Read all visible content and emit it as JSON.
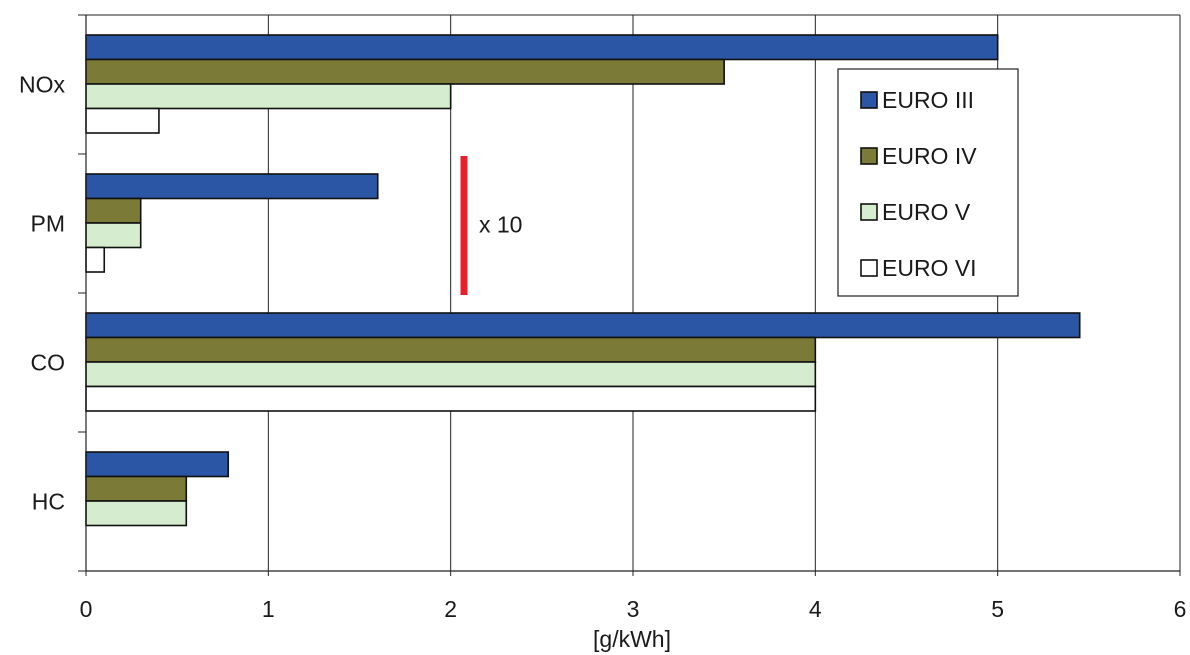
{
  "chart_data": {
    "type": "bar",
    "orientation": "horizontal",
    "categories": [
      "NOx",
      "PM",
      "CO",
      "HC"
    ],
    "series": [
      {
        "name": "EURO III",
        "color": "#2b56a5",
        "values": [
          5.0,
          1.6,
          5.45,
          0.78
        ]
      },
      {
        "name": "EURO IV",
        "color": "#7b7a36",
        "values": [
          3.5,
          0.3,
          4.0,
          0.55
        ]
      },
      {
        "name": "EURO V",
        "color": "#d5ecce",
        "values": [
          2.0,
          0.3,
          4.0,
          0.55
        ]
      },
      {
        "name": "EURO VI",
        "color": "#ffffff",
        "values": [
          0.4,
          0.1,
          4.0,
          null
        ]
      }
    ],
    "xlabel": "[g/kWh]",
    "ylabel": "",
    "xlim": [
      0,
      6
    ],
    "xticks": [
      "0",
      "1",
      "2",
      "3",
      "4",
      "5",
      "6"
    ],
    "grid": "vertical",
    "legend_position": "upper-right",
    "annotation": {
      "text": "x 10",
      "color": "#e8202a",
      "category": "PM"
    }
  }
}
